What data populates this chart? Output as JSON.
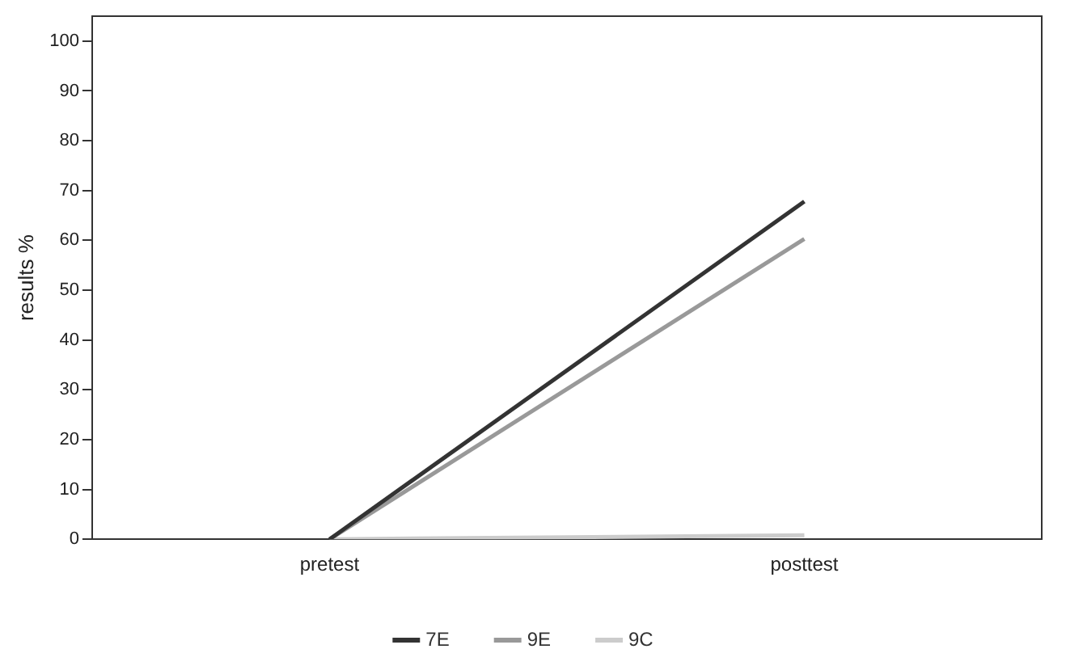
{
  "chart_data": {
    "type": "line",
    "ylabel": "results %",
    "categories": [
      "pretest",
      "posttest"
    ],
    "series": [
      {
        "name": "7E",
        "color": "#333333",
        "values": [
          0,
          67.8
        ]
      },
      {
        "name": "9E",
        "color": "#999999",
        "values": [
          0,
          60.3
        ]
      },
      {
        "name": "9C",
        "color": "#cccccc",
        "values": [
          0,
          0.8
        ]
      }
    ],
    "ylim": [
      0,
      105
    ],
    "yticks": [
      0,
      10,
      20,
      30,
      40,
      50,
      60,
      70,
      80,
      90,
      100
    ],
    "grid": false,
    "legend": "bottom",
    "marker": "none",
    "line_style": "solid"
  }
}
